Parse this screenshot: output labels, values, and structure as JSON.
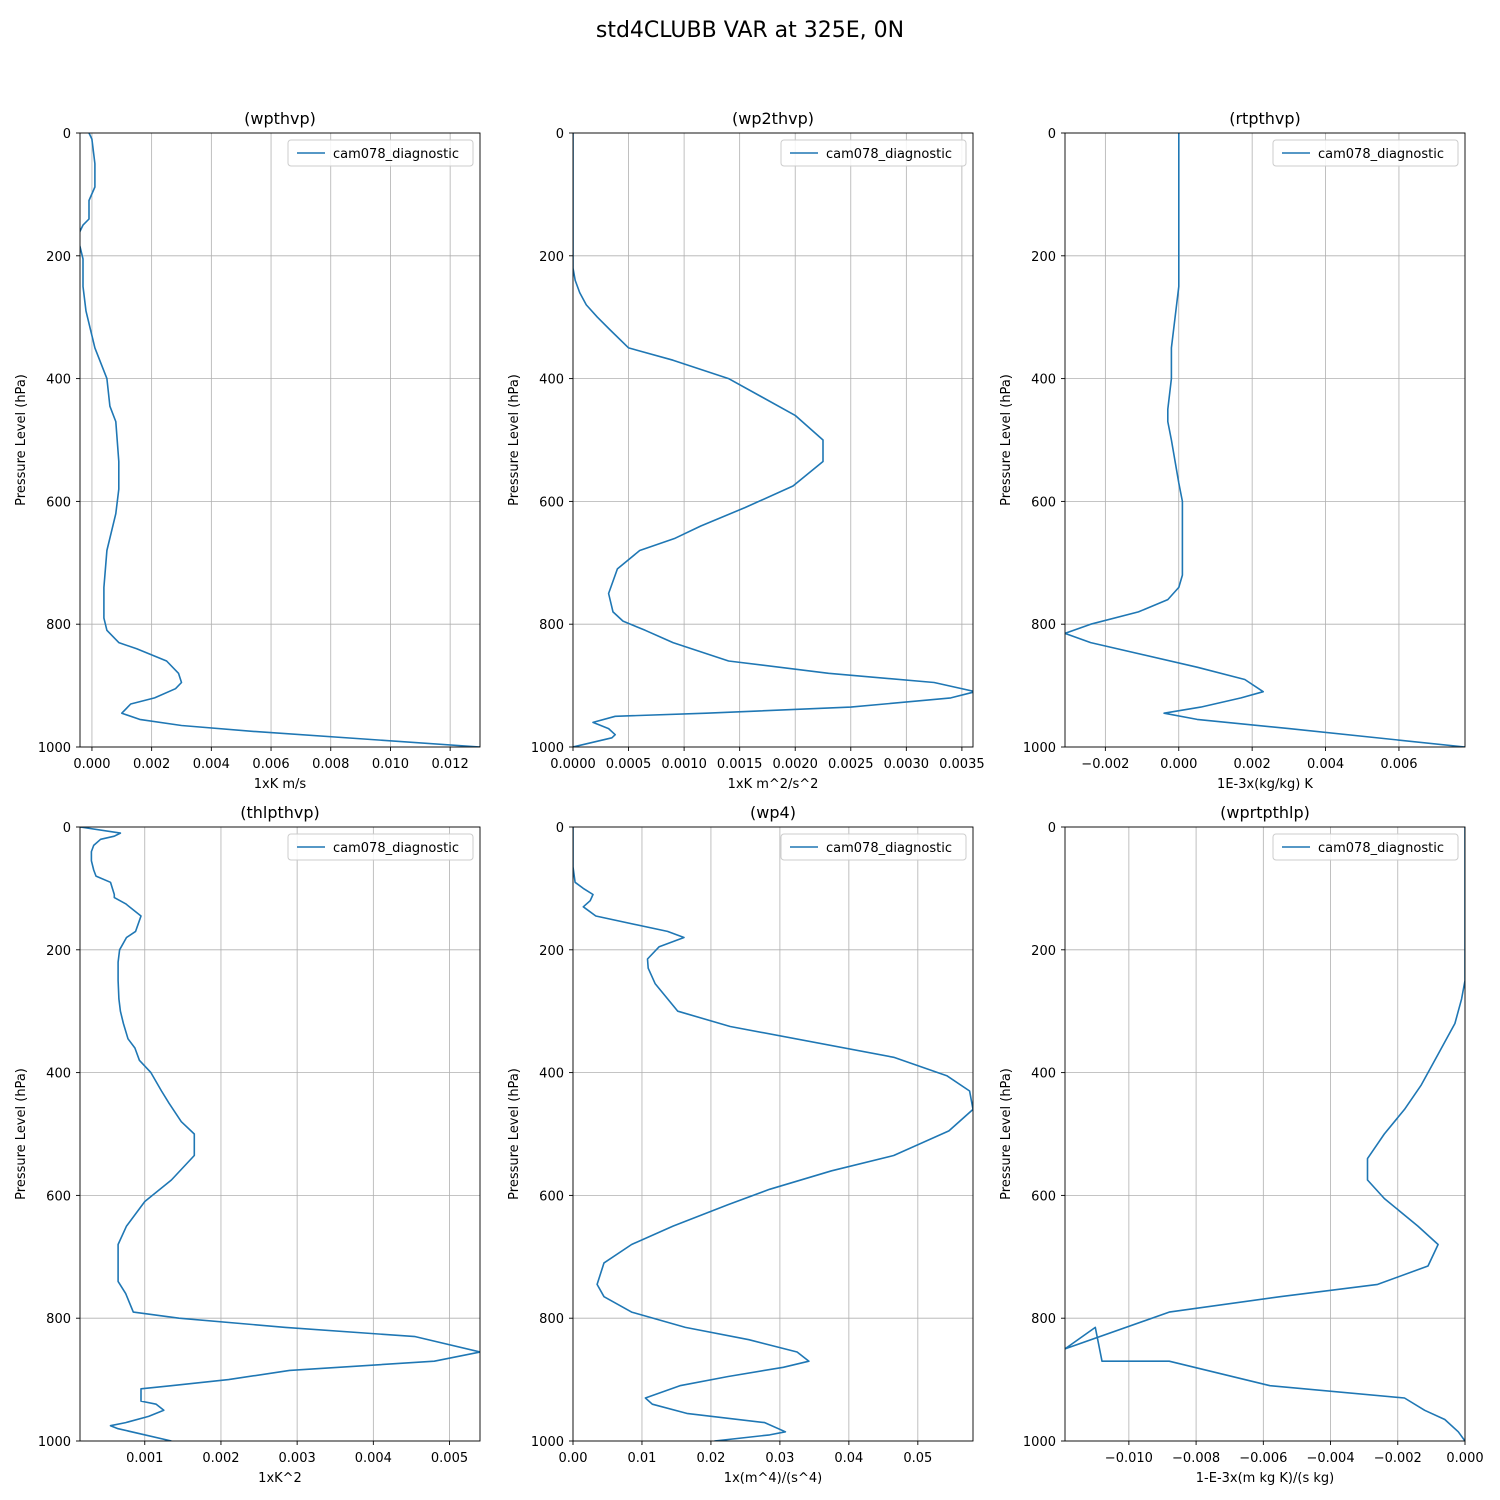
{
  "figure": {
    "title": "std4CLUBB VAR at 325E, 0N",
    "line_color": "#1f77b4"
  },
  "chart_data": [
    {
      "type": "line",
      "title": "(wpthvp)",
      "xlabel": "1xK m/s",
      "ylabel": "Pressure Level (hPa)",
      "xlim": [
        -0.0004,
        0.013
      ],
      "ylim": [
        1000,
        0
      ],
      "xticks": [
        0,
        0.002,
        0.004,
        0.006,
        0.008,
        0.01,
        0.012
      ],
      "xtick_labels": [
        "0.000",
        "0.002",
        "0.004",
        "0.006",
        "0.008",
        "0.010",
        "0.012"
      ],
      "yticks": [
        0,
        200,
        400,
        600,
        800,
        1000
      ],
      "grid": true,
      "legend": "upper right",
      "series": [
        {
          "name": "cam078_diagnostic",
          "x": [
            -0.0001,
            0,
            0.0001,
            0.0001,
            -0.0001,
            -0.0001,
            -0.0003,
            -0.0005,
            -0.0004,
            -0.0003,
            -0.0003,
            -0.0002,
            0.0001,
            0.0005,
            0.0006,
            0.0008,
            0.0009,
            0.0009,
            0.0008,
            0.0005,
            0.0004,
            0.0004,
            0.0004,
            0.0005,
            0.0009,
            0.0015,
            0.0025,
            0.0029,
            0.003,
            0.0028,
            0.0021,
            0.0013,
            0.001,
            0.0016,
            0.003,
            0.0055,
            0.013
          ],
          "y": [
            0,
            10,
            50,
            88,
            110,
            140,
            150,
            170,
            185,
            205,
            250,
            290,
            350,
            400,
            445,
            470,
            535,
            580,
            620,
            680,
            740,
            770,
            790,
            810,
            830,
            840,
            860,
            880,
            895,
            905,
            920,
            930,
            945,
            955,
            965,
            975,
            1000
          ]
        }
      ]
    },
    {
      "type": "line",
      "title": "(wp2thvp)",
      "xlabel": "1xK m^2/s^2",
      "ylabel": "Pressure Level (hPa)",
      "xlim": [
        0,
        0.0036
      ],
      "ylim": [
        1000,
        0
      ],
      "xticks": [
        0,
        0.0005,
        0.001,
        0.0015,
        0.002,
        0.0025,
        0.003,
        0.0035
      ],
      "xtick_labels": [
        "0.0000",
        "0.0005",
        "0.0010",
        "0.0015",
        "0.0020",
        "0.0025",
        "0.0030",
        "0.0035"
      ],
      "yticks": [
        0,
        200,
        400,
        600,
        800,
        1000
      ],
      "grid": true,
      "legend": "upper right",
      "series": [
        {
          "name": "cam078_diagnostic",
          "x": [
            0,
            0,
            0,
            0,
            2e-05,
            6e-05,
            0.00012,
            0.00022,
            0.00033,
            0.0005,
            0.0009,
            0.0014,
            0.0017,
            0.002,
            0.00225,
            0.00225,
            0.00198,
            0.00155,
            0.00115,
            0.00092,
            0.0006,
            0.0004,
            0.00032,
            0.00036,
            0.00045,
            0.00065,
            0.0009,
            0.0014,
            0.0023,
            0.00325,
            0.00362,
            0.0034,
            0.0025,
            0.0012,
            0.00038,
            0.00018,
            0.00032,
            0.00038,
            0.00035,
            0
          ],
          "y": [
            0,
            100,
            180,
            220,
            240,
            260,
            280,
            300,
            320,
            350,
            370,
            400,
            430,
            460,
            500,
            535,
            575,
            610,
            640,
            660,
            680,
            710,
            750,
            780,
            795,
            810,
            830,
            860,
            880,
            895,
            910,
            920,
            935,
            945,
            950,
            960,
            970,
            980,
            985,
            1000
          ]
        }
      ]
    },
    {
      "type": "line",
      "title": "(rtpthvp)",
      "xlabel": "1E-3x(kg/kg) K",
      "ylabel": "Pressure Level (hPa)",
      "xlim": [
        -0.0031,
        0.0078
      ],
      "ylim": [
        1000,
        0
      ],
      "xticks": [
        -0.002,
        0,
        0.002,
        0.004,
        0.006
      ],
      "xtick_labels": [
        "−0.002",
        "0.000",
        "0.002",
        "0.004",
        "0.006"
      ],
      "yticks": [
        0,
        200,
        400,
        600,
        800,
        1000
      ],
      "grid": true,
      "legend": "upper right",
      "series": [
        {
          "name": "cam078_diagnostic",
          "x": [
            0,
            0,
            0,
            0,
            -0.0001,
            -0.0002,
            -0.0002,
            -0.0003,
            -0.0003,
            -0.0002,
            0,
            0.0001,
            0.0001,
            0.0001,
            0,
            -0.0003,
            -0.0011,
            -0.0024,
            -0.0031,
            -0.0024,
            0.0005,
            0.0018,
            0.0023,
            0.0017,
            0.0006,
            -0.0004,
            0.0005,
            0.003,
            0.0078
          ],
          "y": [
            0,
            100,
            200,
            250,
            300,
            350,
            400,
            450,
            470,
            500,
            570,
            600,
            650,
            720,
            740,
            760,
            780,
            800,
            815,
            830,
            870,
            890,
            910,
            920,
            935,
            945,
            955,
            970,
            1000
          ]
        }
      ]
    },
    {
      "type": "line",
      "title": "(thlpthvp)",
      "xlabel": "1xK^2",
      "ylabel": "Pressure Level (hPa)",
      "xlim": [
        0.00015,
        0.0054
      ],
      "ylim": [
        1000,
        0
      ],
      "xticks": [
        0.001,
        0.002,
        0.003,
        0.004,
        0.005
      ],
      "xtick_labels": [
        "0.001",
        "0.002",
        "0.003",
        "0.004",
        "0.005"
      ],
      "yticks": [
        0,
        200,
        400,
        600,
        800,
        1000
      ],
      "grid": true,
      "legend": "upper right",
      "series": [
        {
          "name": "cam078_diagnostic",
          "x": [
            0.00015,
            0.00068,
            0.0006,
            0.00042,
            0.00033,
            0.0003,
            0.0003,
            0.00033,
            0.00036,
            0.00055,
            0.0006,
            0.0006,
            0.00075,
            0.00095,
            0.00088,
            0.00076,
            0.00067,
            0.00065,
            0.00065,
            0.00066,
            0.00068,
            0.00072,
            0.00078,
            0.00087,
            0.00093,
            0.00108,
            0.00122,
            0.00132,
            0.00148,
            0.00165,
            0.00165,
            0.00135,
            0.001,
            0.00076,
            0.00065,
            0.00065,
            0.00065,
            0.00075,
            0.00085,
            0.00145,
            0.00285,
            0.00455,
            0.0054,
            0.0048,
            0.0029,
            0.0021,
            0.00135,
            0.00095,
            0.00095,
            0.00095,
            0.00115,
            0.00125,
            0.00105,
            0.00075,
            0.00055,
            0.00065,
            0.00135
          ],
          "y": [
            0,
            10,
            15,
            20,
            30,
            40,
            55,
            70,
            80,
            90,
            110,
            115,
            125,
            145,
            170,
            180,
            200,
            220,
            250,
            280,
            300,
            320,
            345,
            360,
            380,
            400,
            430,
            450,
            480,
            500,
            535,
            575,
            610,
            650,
            680,
            715,
            740,
            760,
            790,
            800,
            815,
            830,
            855,
            870,
            885,
            900,
            910,
            915,
            920,
            935,
            940,
            950,
            960,
            970,
            975,
            980,
            1000
          ]
        }
      ]
    },
    {
      "type": "line",
      "title": "(wp4)",
      "xlabel": "1x(m^4)/(s^4)",
      "ylabel": "Pressure Level (hPa)",
      "xlim": [
        0,
        0.058
      ],
      "ylim": [
        1000,
        0
      ],
      "xticks": [
        0,
        0.01,
        0.02,
        0.03,
        0.04,
        0.05
      ],
      "xtick_labels": [
        "0.00",
        "0.01",
        "0.02",
        "0.03",
        "0.04",
        "0.05"
      ],
      "yticks": [
        0,
        200,
        400,
        600,
        800,
        1000
      ],
      "grid": true,
      "legend": "upper right",
      "series": [
        {
          "name": "cam078_diagnostic",
          "x": [
            0,
            0,
            0.0003,
            0.0015,
            0.0029,
            0.0025,
            0.0015,
            0.0033,
            0.0137,
            0.0161,
            0.0125,
            0.0108,
            0.0109,
            0.0119,
            0.0152,
            0.0228,
            0.0465,
            0.0542,
            0.0575,
            0.058,
            0.0545,
            0.0465,
            0.0375,
            0.0285,
            0.0225,
            0.0145,
            0.0085,
            0.0045,
            0.0035,
            0.0045,
            0.0085,
            0.0163,
            0.0255,
            0.0325,
            0.0342,
            0.0305,
            0.0225,
            0.0155,
            0.0105,
            0.0115,
            0.0165,
            0.0278,
            0.0308,
            0.0285,
            0.0205
          ],
          "y": [
            0,
            65,
            90,
            100,
            110,
            120,
            130,
            145,
            170,
            180,
            195,
            215,
            230,
            255,
            300,
            325,
            375,
            405,
            430,
            460,
            495,
            535,
            560,
            590,
            615,
            650,
            680,
            710,
            745,
            765,
            790,
            815,
            835,
            855,
            870,
            880,
            895,
            910,
            930,
            940,
            955,
            970,
            985,
            990,
            1000
          ]
        }
      ]
    },
    {
      "type": "line",
      "title": "(wprtpthlp)",
      "xlabel": "1-E-3x(m kg K)/(s kg)",
      "ylabel": "Pressure Level (hPa)",
      "xlim": [
        -0.0119,
        0
      ],
      "ylim": [
        1000,
        0
      ],
      "xticks": [
        -0.01,
        -0.008,
        -0.006,
        -0.004,
        -0.002,
        0
      ],
      "xtick_labels": [
        "−0.010",
        "−0.008",
        "−0.006",
        "−0.004",
        "−0.002",
        "0.000"
      ],
      "yticks": [
        0,
        200,
        400,
        600,
        800,
        1000
      ],
      "grid": true,
      "legend": "upper right",
      "series": [
        {
          "name": "cam078_diagnostic",
          "x": [
            0,
            0,
            0,
            -0.0001,
            -0.0003,
            -0.0008,
            -0.0013,
            -0.0018,
            -0.0024,
            -0.0029,
            -0.0029,
            -0.0024,
            -0.0014,
            -0.0008,
            -0.0011,
            -0.0026,
            -0.0055,
            -0.0088,
            -0.0119,
            -0.011,
            -0.0108,
            -0.0088,
            -0.0058,
            -0.0018,
            -0.0012,
            -0.0006,
            -0.0002,
            0
          ],
          "y": [
            0,
            100,
            250,
            280,
            320,
            370,
            420,
            460,
            500,
            540,
            575,
            605,
            650,
            680,
            715,
            745,
            765,
            790,
            850,
            815,
            870,
            870,
            910,
            930,
            950,
            965,
            985,
            1000
          ]
        }
      ]
    }
  ]
}
